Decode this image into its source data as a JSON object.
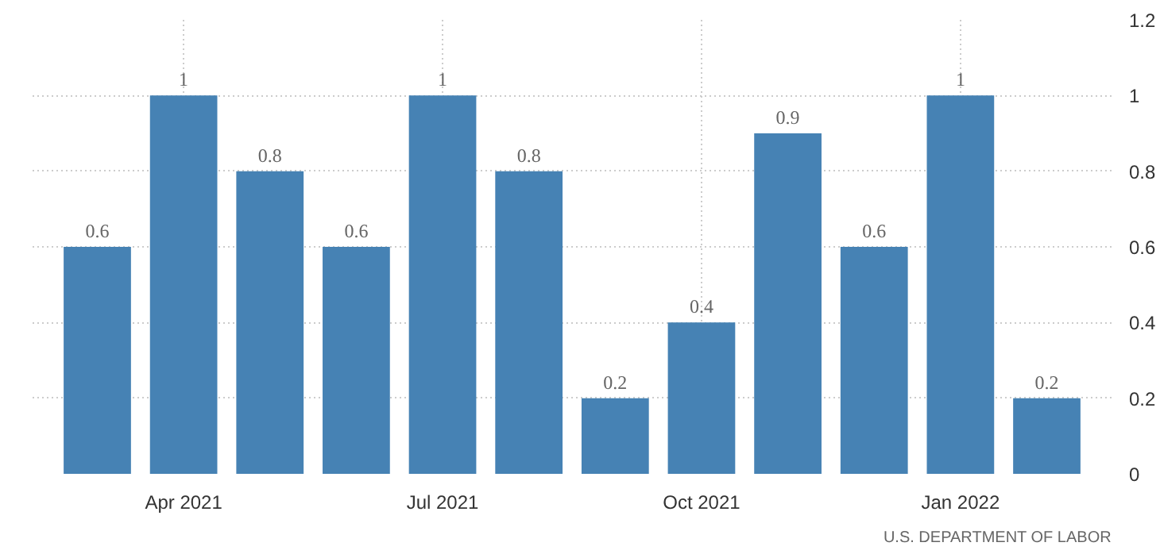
{
  "chart_data": {
    "type": "bar",
    "categories": [
      null,
      "Apr 2021",
      null,
      null,
      "Jul 2021",
      null,
      null,
      "Oct 2021",
      null,
      null,
      "Jan 2022",
      null
    ],
    "values": [
      0.6,
      1,
      0.8,
      0.6,
      1,
      0.8,
      0.2,
      0.4,
      0.9,
      0.6,
      1,
      0.2
    ],
    "color": "#4682b4",
    "ylim": [
      0,
      1.2
    ],
    "yticks": [
      0,
      0.2,
      0.4,
      0.6,
      0.8,
      1,
      1.2
    ],
    "grid": true,
    "data_labels": true,
    "annotations": [
      "U.S. DEPARTMENT OF LABOR"
    ]
  }
}
